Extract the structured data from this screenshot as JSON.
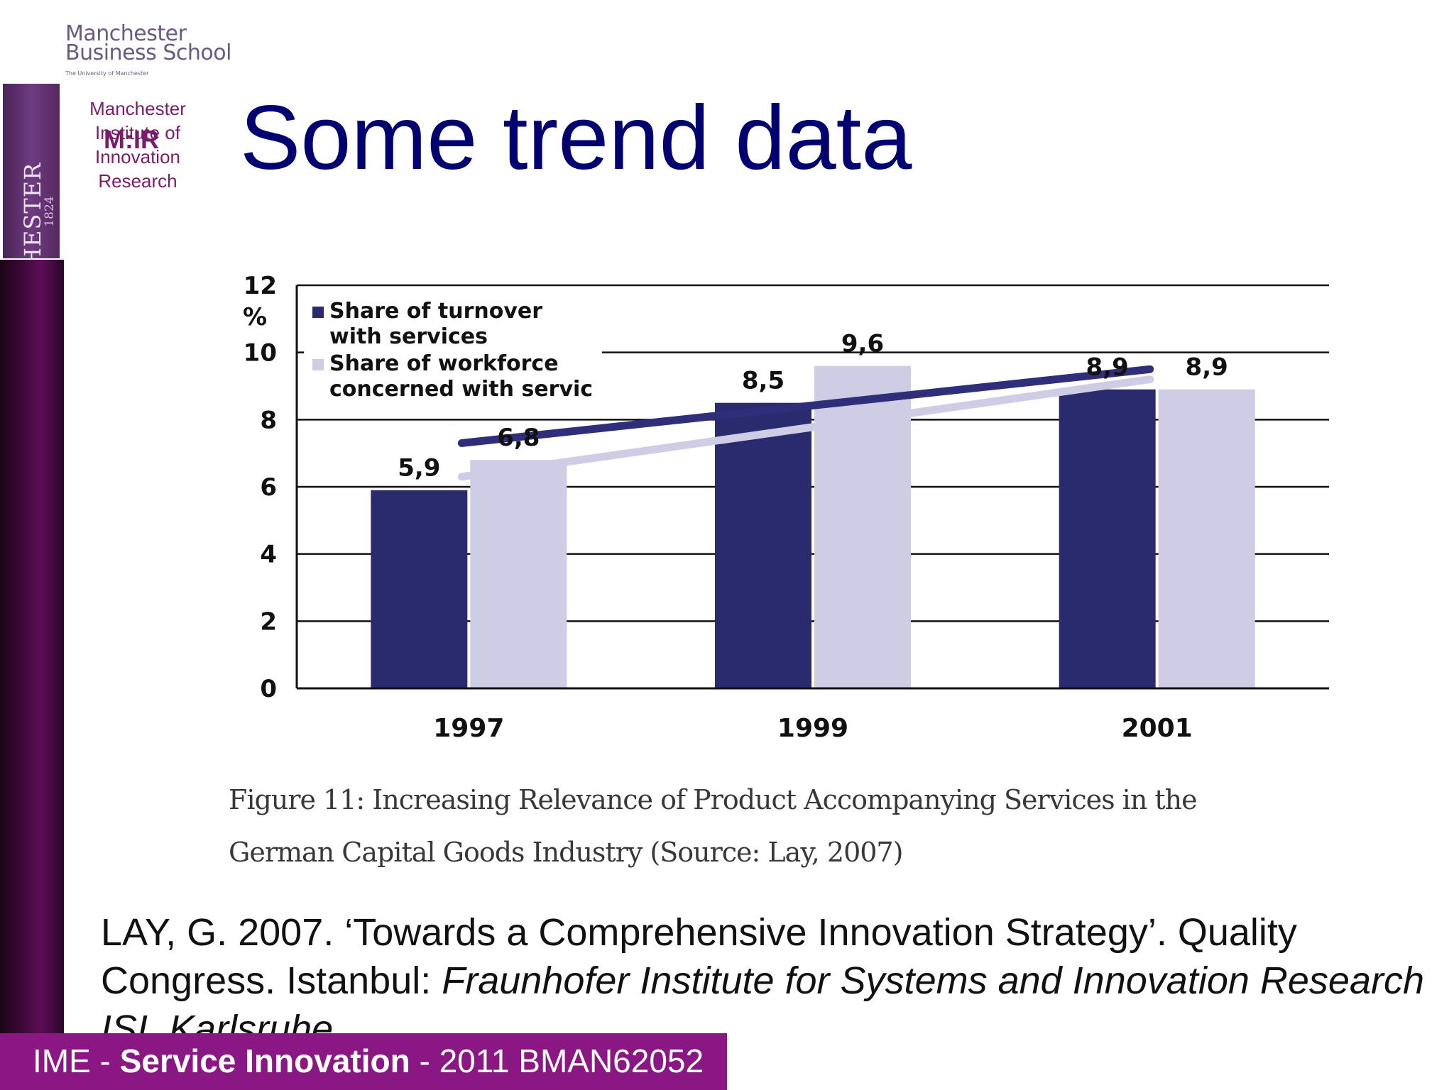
{
  "logo": {
    "school_line1": "Manchester",
    "school_line2": "Business School",
    "school_subline": "The University of Manchester",
    "university_name": "MANCHESTER",
    "university_year": "1824",
    "institute_line1": "Manchester",
    "institute_line2": "Institute of",
    "institute_line3": "Innovation",
    "institute_line4": "Research",
    "institute_acronym": "M:IR"
  },
  "title": "Some trend data",
  "chart_data": {
    "type": "bar",
    "categories": [
      "1997",
      "1999",
      "2001"
    ],
    "series": [
      {
        "name": "Share of turnover with services",
        "name_lines": [
          "Share of turnover",
          "with services"
        ],
        "values": [
          5.9,
          8.5,
          8.9
        ],
        "labels": [
          "5,9",
          "8,5",
          "8,9"
        ],
        "color": "#2a2a6e",
        "trend_color": "#2e2e7a"
      },
      {
        "name": "Share of workforce concerned with servic",
        "name_lines": [
          "Share of workforce",
          "concerned with servic"
        ],
        "values": [
          6.8,
          9.6,
          8.9
        ],
        "labels": [
          "6,8",
          "9,6",
          "8,9"
        ],
        "color": "#cfcde6",
        "trend_color": "#cfcde6"
      }
    ],
    "trendlines": [
      {
        "series": "Share of turnover with services",
        "start": 7.3,
        "end": 9.5
      },
      {
        "series": "Share of workforce concerned with servic",
        "start": 6.3,
        "end": 9.2
      }
    ],
    "ylabel": "%",
    "yticks": [
      0,
      2,
      4,
      6,
      8,
      10,
      12
    ],
    "ylim": [
      0,
      12
    ],
    "grid": true,
    "legend": "top-left",
    "caption_lines": [
      "Figure 11: Increasing Relevance of Product Accompanying Services in the",
      "German Capital Goods Industry (Source: Lay, 2007)"
    ]
  },
  "citation": {
    "plain": "LAY, G. 2007. ‘Towards a Comprehensive Innovation Strategy’. Quality Congress. Istanbul: ",
    "italic": "Fraunhofer Institute for Systems and Innovation Research ISI, Karlsruhe"
  },
  "footer": {
    "prefix": "IME - ",
    "bold": "Service Innovation",
    "suffix": " - 2011 BMAN62052"
  },
  "colors": {
    "title": "#000070",
    "footer_bg": "#8a1783",
    "institute_text": "#7a1c6a"
  }
}
